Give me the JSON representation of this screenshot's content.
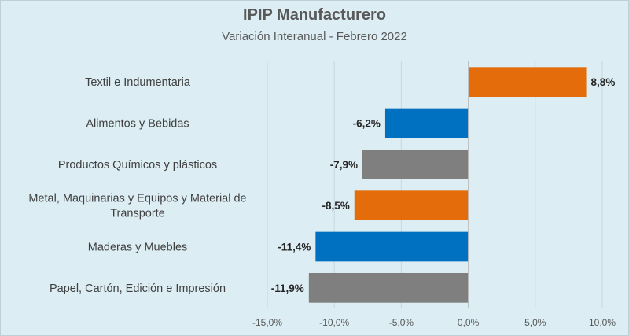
{
  "chart_data": {
    "type": "bar",
    "orientation": "horizontal",
    "title": "IPIP Manufacturero",
    "subtitle": "Variación Interanual - Febrero 2022",
    "categories": [
      [
        "Textil e Indumentaria"
      ],
      [
        "Alimentos y Bebidas"
      ],
      [
        "Productos Químicos y plásticos"
      ],
      [
        "Metal, Maquinarias y Equipos y Material de",
        "Transporte"
      ],
      [
        "Maderas y Muebles"
      ],
      [
        "Papel, Cartón, Edición e Impresión"
      ]
    ],
    "values": [
      8.8,
      -6.2,
      -7.9,
      -8.5,
      -11.4,
      -11.9
    ],
    "value_labels": [
      "8,8%",
      "-6,2%",
      "-7,9%",
      "-8,5%",
      "-11,4%",
      "-11,9%"
    ],
    "bar_colors": [
      "#e46c0a",
      "#0070c0",
      "#7f7f7f",
      "#e46c0a",
      "#0070c0",
      "#7f7f7f"
    ],
    "xlim": [
      -15,
      10
    ],
    "xticks": [
      -15,
      -10,
      -5,
      0,
      5,
      10
    ],
    "xtick_labels": [
      "-15,0%",
      "-10,0%",
      "-5,0%",
      "0,0%",
      "5,0%",
      "10,0%"
    ],
    "xlabel": "",
    "ylabel": "",
    "grid": true,
    "legend": "none"
  },
  "colors": {
    "background": "#dcedf4",
    "gridline": "#c8d8de",
    "axis": "#bfbfbf"
  }
}
